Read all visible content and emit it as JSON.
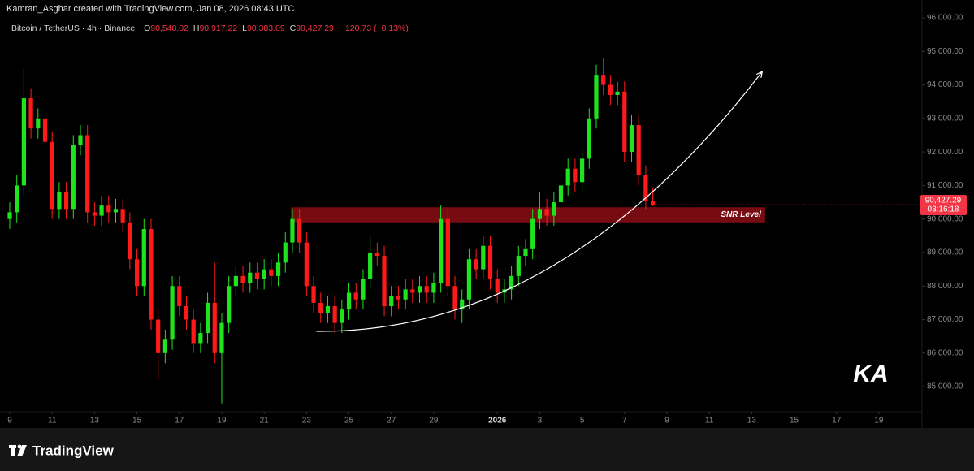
{
  "header": {
    "credit": "Kamran_Asghar created with TradingView.com, Jan 08, 2026 08:43 UTC",
    "symbol": "Bitcoin / TetherUS · 4h · Binance",
    "open_label": "O",
    "open": "90,548.02",
    "high_label": "H",
    "high": "90,917.22",
    "low_label": "L",
    "low": "90,383.09",
    "close_label": "C",
    "close": "90,427.29",
    "change": "−120.73 (−0.13%)"
  },
  "footer": {
    "brand": "TradingView"
  },
  "watermark": "KA",
  "chart_data": {
    "type": "candlestick",
    "up_color": "#1ee31e",
    "down_color": "#ff1a1a",
    "open": [
      90000,
      90200,
      91000,
      93600,
      92700,
      93000,
      92300,
      90300,
      90800,
      90300,
      92200,
      92500,
      90200,
      90100,
      90400,
      90200,
      90300,
      89900,
      88800,
      88000,
      89700,
      87000,
      86000,
      86400,
      88000,
      87400,
      87000,
      86300,
      86600,
      87500,
      86000,
      86900,
      88000,
      88300,
      88100,
      88400,
      88200,
      88500,
      88300,
      88700,
      89300,
      90000,
      89300,
      88000,
      87500,
      87200,
      87400,
      86900,
      87300,
      87800,
      87600,
      88200,
      89000,
      88900,
      87400,
      87700,
      87600,
      87900,
      87800,
      88000,
      87800,
      88100,
      90000,
      88000,
      87300,
      87600,
      88800,
      88500,
      89200,
      88200,
      87800,
      87900,
      88300,
      88900,
      89100,
      90000,
      90300,
      90100,
      90500,
      91000,
      91500,
      91100,
      91800,
      93000,
      94300,
      94000,
      93700,
      93800,
      92000,
      92800,
      91300,
      90548.02
    ],
    "high": [
      90500,
      91300,
      94500,
      93900,
      93300,
      93300,
      92600,
      91100,
      91100,
      92500,
      92800,
      92800,
      90500,
      90700,
      90700,
      90600,
      90600,
      90200,
      89100,
      90000,
      90000,
      87300,
      86700,
      88300,
      88300,
      87700,
      87300,
      86900,
      87800,
      88700,
      87200,
      88300,
      88600,
      88600,
      88700,
      88700,
      88800,
      88800,
      89000,
      89600,
      90300,
      90300,
      89600,
      88300,
      87800,
      87700,
      87700,
      87600,
      88100,
      88100,
      88500,
      89500,
      89300,
      89200,
      88000,
      88000,
      88200,
      88200,
      88300,
      88300,
      88400,
      90400,
      90300,
      88300,
      87900,
      89100,
      89100,
      89500,
      89500,
      88500,
      88200,
      88600,
      89200,
      89400,
      90300,
      90800,
      90600,
      90800,
      91300,
      91800,
      91800,
      92100,
      93300,
      94600,
      94800,
      94300,
      94100,
      94100,
      93100,
      93100,
      91600,
      90917.22
    ],
    "low": [
      89700,
      89900,
      90700,
      92400,
      92400,
      92000,
      90000,
      90000,
      90000,
      90000,
      91900,
      89900,
      89800,
      89800,
      89900,
      89900,
      89600,
      88500,
      87700,
      87700,
      86700,
      85200,
      85700,
      86100,
      87100,
      86700,
      86000,
      86000,
      86300,
      85700,
      84500,
      86600,
      87700,
      87800,
      87800,
      87900,
      87900,
      88000,
      88000,
      88400,
      89000,
      89000,
      87700,
      87200,
      86900,
      86900,
      86600,
      86600,
      87000,
      87300,
      87300,
      87900,
      88600,
      87100,
      87100,
      87300,
      87300,
      87500,
      87500,
      87500,
      87500,
      87800,
      87700,
      87000,
      86900,
      87300,
      88200,
      88200,
      87900,
      87500,
      87500,
      87600,
      88000,
      88600,
      88800,
      89700,
      89800,
      89800,
      90200,
      90700,
      90800,
      90800,
      91500,
      92700,
      93700,
      93400,
      93400,
      91700,
      91700,
      91000,
      90300,
      90383.09
    ],
    "close": [
      90200,
      91000,
      93600,
      92700,
      93000,
      92300,
      90300,
      90800,
      90300,
      92200,
      92500,
      90200,
      90100,
      90400,
      90200,
      90300,
      89900,
      88800,
      88000,
      89700,
      87000,
      86000,
      86400,
      88000,
      87400,
      87000,
      86300,
      86600,
      87500,
      86000,
      86900,
      88000,
      88300,
      88100,
      88400,
      88200,
      88500,
      88300,
      88700,
      89300,
      90000,
      89300,
      88000,
      87500,
      87200,
      87400,
      86900,
      87300,
      87800,
      87600,
      88200,
      89000,
      88900,
      87400,
      87700,
      87600,
      87900,
      87800,
      88000,
      87800,
      88100,
      90000,
      88000,
      87300,
      87600,
      88800,
      88500,
      89200,
      88200,
      87800,
      87900,
      88300,
      88900,
      89100,
      90000,
      90300,
      90100,
      90500,
      91000,
      91500,
      91100,
      91800,
      93000,
      94300,
      94000,
      93700,
      93800,
      92000,
      92800,
      91300,
      90548.02,
      90427.29
    ],
    "xlim": [
      -1.38,
      129.1
    ],
    "xticks": [
      {
        "value": 0,
        "label": "9"
      },
      {
        "value": 6,
        "label": "11"
      },
      {
        "value": 12,
        "label": "13"
      },
      {
        "value": 18,
        "label": "15"
      },
      {
        "value": 24,
        "label": "17"
      },
      {
        "value": 30,
        "label": "19"
      },
      {
        "value": 36,
        "label": "21"
      },
      {
        "value": 42,
        "label": "23"
      },
      {
        "value": 48,
        "label": "25"
      },
      {
        "value": 54,
        "label": "27"
      },
      {
        "value": 60,
        "label": "29"
      },
      {
        "value": 69,
        "label": "2026"
      },
      {
        "value": 75,
        "label": "3"
      },
      {
        "value": 81,
        "label": "5"
      },
      {
        "value": 87,
        "label": "7"
      },
      {
        "value": 93,
        "label": "9"
      },
      {
        "value": 99,
        "label": "11"
      },
      {
        "value": 105,
        "label": "13"
      },
      {
        "value": 111,
        "label": "15"
      },
      {
        "value": 117,
        "label": "17"
      },
      {
        "value": 123,
        "label": "19"
      }
    ],
    "ylim": [
      84300,
      96290
    ],
    "yticks": [
      {
        "value": 85000,
        "label": "85,000.00"
      },
      {
        "value": 86000,
        "label": "86,000.00"
      },
      {
        "value": 87000,
        "label": "87,000.00"
      },
      {
        "value": 88000,
        "label": "88,000.00"
      },
      {
        "value": 89000,
        "label": "89,000.00"
      },
      {
        "value": 90000,
        "label": "90,000.00"
      },
      {
        "value": 91000,
        "label": "91,000.00"
      },
      {
        "value": 92000,
        "label": "92,000.00"
      },
      {
        "value": 93000,
        "label": "93,000.00"
      },
      {
        "value": 94000,
        "label": "94,000.00"
      },
      {
        "value": 95000,
        "label": "95,000.00"
      },
      {
        "value": 96000,
        "label": "96,000.00"
      }
    ],
    "last_price": {
      "value": 90427.29,
      "label": "90,427.29",
      "countdown": "03:16:18",
      "color": "#f23645"
    },
    "zone": {
      "label": "SNR Level",
      "x": [
        39.8,
        106.9
      ],
      "y": [
        89900,
        90350
      ],
      "color": "#8b0d15"
    },
    "curve": {
      "x": [
        43.4,
        106.5
      ],
      "y": [
        86650,
        94400
      ],
      "color": "#ffffff"
    }
  }
}
